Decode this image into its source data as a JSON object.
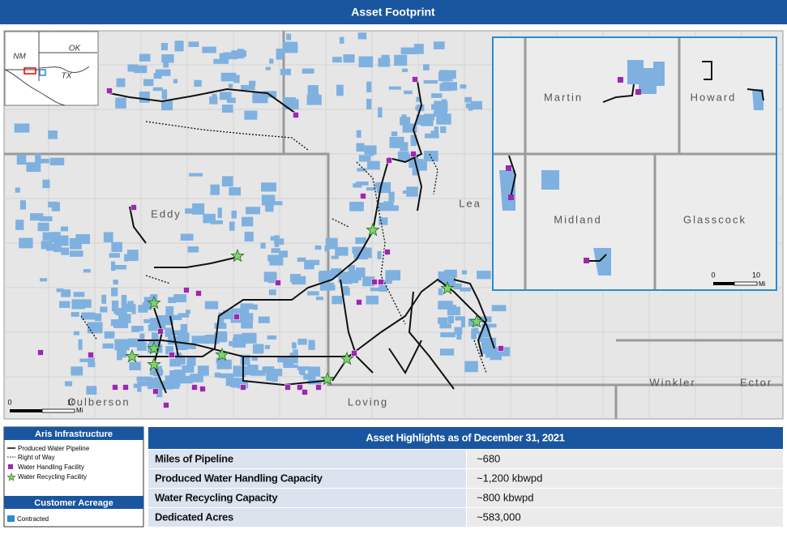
{
  "header": {
    "title": "Asset Footprint"
  },
  "map": {
    "county_labels": [
      "Eddy",
      "Lea",
      "Culberson",
      "Loving",
      "Winkler",
      "Ector"
    ],
    "state_labels": [
      "NM",
      "OK",
      "TX"
    ],
    "scale": {
      "start": "0",
      "end": "10",
      "unit": "Mi"
    }
  },
  "inset": {
    "county_labels": [
      "Martin",
      "Howard",
      "Midland",
      "Glasscock"
    ],
    "scale": {
      "start": "0",
      "end": "10",
      "unit": "Mi"
    }
  },
  "legend": {
    "infrastructure_title": "Aris Infrastructure",
    "infrastructure_items": [
      "Produced Water Pipeline",
      "Right of Way",
      "Water Handling Facility",
      "Water Recycling Facility"
    ],
    "acreage_title": "Customer Acreage",
    "acreage_items": [
      "Contracted"
    ]
  },
  "table": {
    "title": "Asset Highlights as of December 31, 2021",
    "rows": [
      [
        "Miles of Pipeline",
        "~680"
      ],
      [
        "Produced Water Handling Capacity",
        "~1,200 kbwpd"
      ],
      [
        "Water Recycling Capacity",
        "~800 kbwpd"
      ],
      [
        "Dedicated Acres",
        "~583,000"
      ]
    ]
  }
}
